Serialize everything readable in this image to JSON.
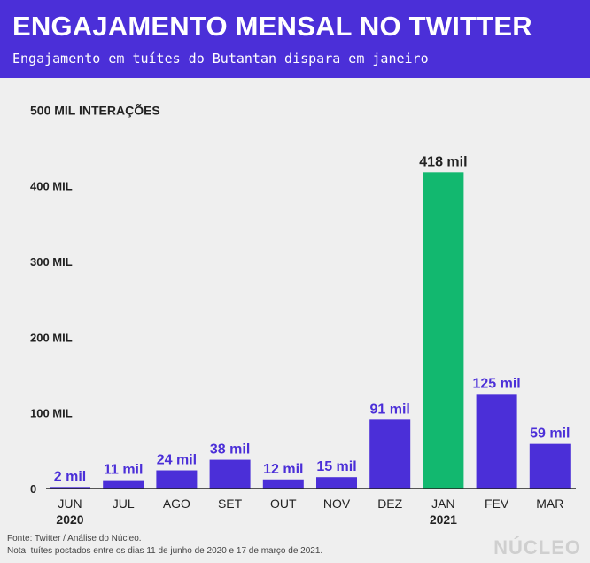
{
  "header": {
    "title": "ENGAJAMENTO MENSAL NO TWITTER",
    "subtitle": "Engajamento em tuítes do Butantan dispara em janeiro"
  },
  "chart_data": {
    "type": "bar",
    "ylabel": "500 MIL INTERAÇÕES",
    "ylim": [
      0,
      500
    ],
    "yticks": [
      0,
      100,
      200,
      300,
      400
    ],
    "ytick_labels": [
      "0",
      "100 MIL",
      "200 MIL",
      "300 MIL",
      "400 MIL"
    ],
    "categories": [
      "JUN",
      "JUL",
      "AGO",
      "SET",
      "OUT",
      "NOV",
      "DEZ",
      "JAN",
      "FEV",
      "MAR"
    ],
    "year_labels": [
      "2020",
      "",
      "",
      "",
      "",
      "",
      "",
      "2021",
      "",
      ""
    ],
    "values": [
      2,
      11,
      24,
      38,
      12,
      15,
      91,
      418,
      125,
      59
    ],
    "value_labels": [
      "2 mil",
      "11 mil",
      "24 mil",
      "38 mil",
      "12 mil",
      "15 mil",
      "91 mil",
      "418 mil",
      "125 mil",
      "59 mil"
    ],
    "highlight_index": 7,
    "grid": false,
    "colors": {
      "bar": "#4b2fd8",
      "highlight": "#12b86f",
      "label": "#4b2fd8",
      "highlight_label": "#222222"
    }
  },
  "footer": {
    "source": "Fonte: Twitter / Análise do Núcleo.",
    "note": "Nota: tuítes postados entre os dias 11 de junho de 2020 e 17 de março de 2021.",
    "logo": "NÚCLEO"
  }
}
